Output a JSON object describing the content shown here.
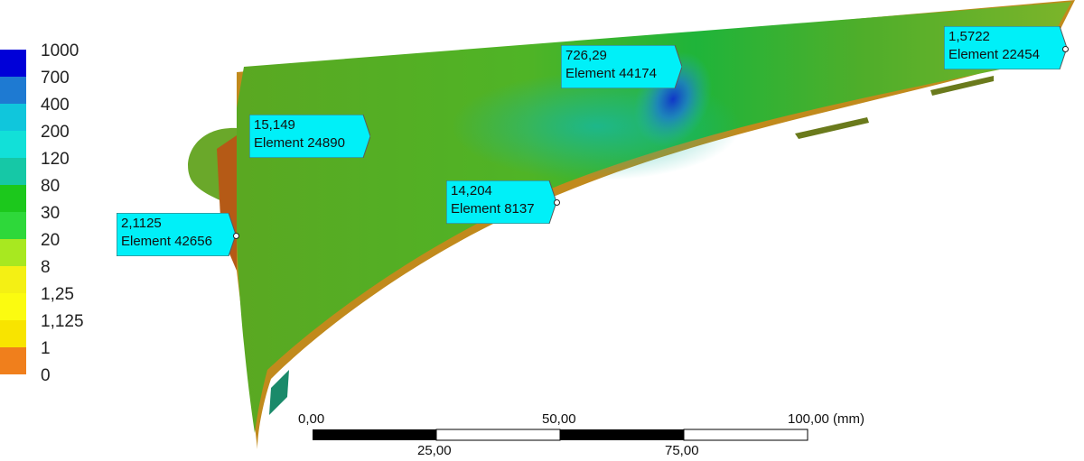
{
  "legend": {
    "levels": [
      {
        "label": "1000",
        "color": "#0000d8"
      },
      {
        "label": "700",
        "color": "#1e7ad2"
      },
      {
        "label": "400",
        "color": "#10c6dc"
      },
      {
        "label": "200",
        "color": "#12e0d8"
      },
      {
        "label": "120",
        "color": "#16c8a6"
      },
      {
        "label": "80",
        "color": "#1cc81c"
      },
      {
        "label": "30",
        "color": "#2ed83a"
      },
      {
        "label": "20",
        "color": "#a8e820"
      },
      {
        "label": "8",
        "color": "#f4f014"
      },
      {
        "label": "1,25",
        "color": "#fbfb10"
      },
      {
        "label": "1,125",
        "color": "#f8e400"
      },
      {
        "label": "1",
        "color": "#f07f1c"
      },
      {
        "label": "0",
        "color": "#ee1111"
      }
    ]
  },
  "probes": [
    {
      "value": "15,149",
      "element": "Element 24890"
    },
    {
      "value": "2,1125",
      "element": "Element 42656"
    },
    {
      "value": "14,204",
      "element": "Element 8137"
    },
    {
      "value": "726,29",
      "element": "Element 44174"
    },
    {
      "value": "1,5722",
      "element": "Element 22454"
    }
  ],
  "scale_bar": {
    "top_labels": [
      "0,00",
      "50,00",
      "100,00 (mm)"
    ],
    "bottom_labels": [
      "25,00",
      "75,00"
    ]
  },
  "colors": {
    "probe_fill": "#00f0f8",
    "model_green": "#4caa22",
    "model_edge": "#b07a18"
  }
}
